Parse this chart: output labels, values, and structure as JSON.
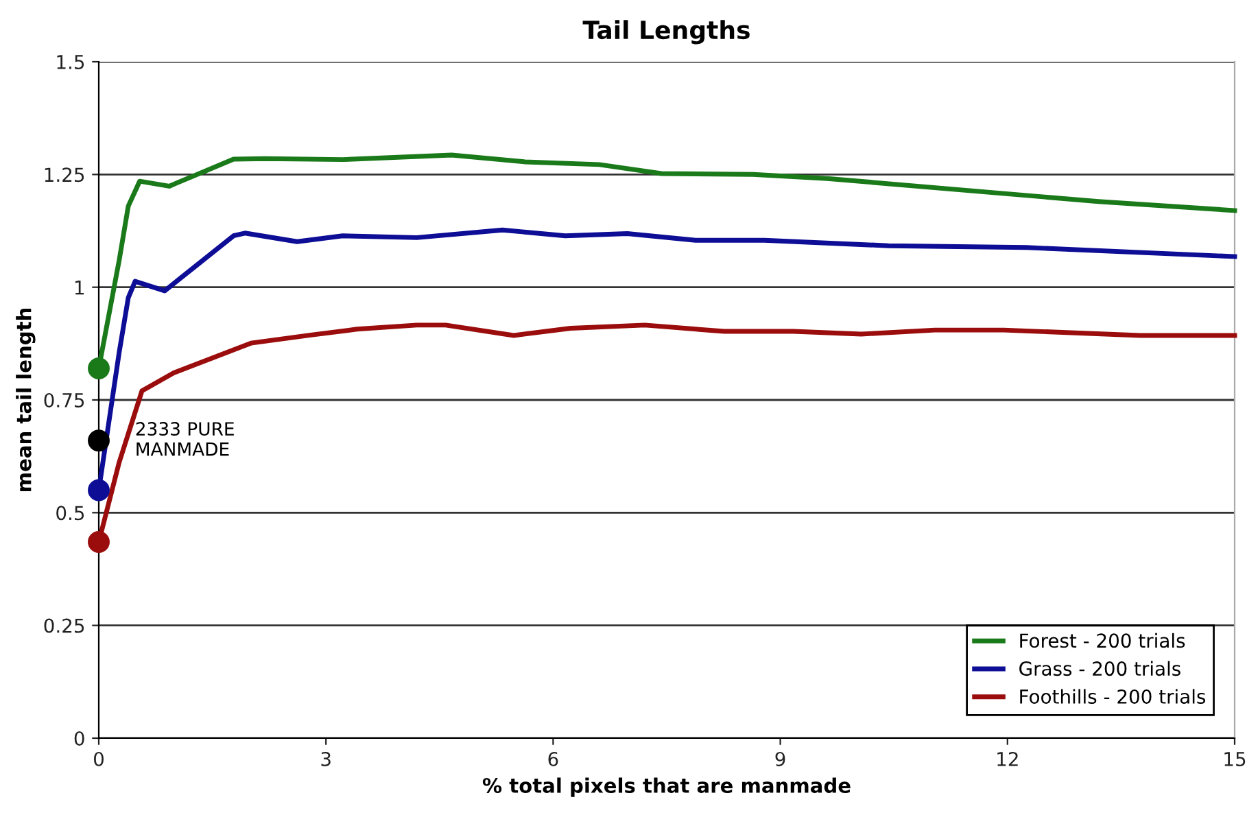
{
  "chart_data": {
    "type": "line",
    "title": "Tail Lengths",
    "xlabel": "% total pixels that are manmade",
    "ylabel": "mean tail length",
    "xlim": [
      0,
      15
    ],
    "xticks": [
      0,
      3,
      6,
      9,
      12,
      15
    ],
    "ylim": [
      0,
      1.5
    ],
    "yticks": [
      0,
      0.25,
      0.5,
      0.75,
      1,
      1.25,
      1.5
    ],
    "grid": "y",
    "legend": "bottom right",
    "marker": "none",
    "line_style": "solid",
    "annotations": [
      {
        "text": "2333 PURE\nMANMADE",
        "x": 0,
        "y": 0.66
      }
    ],
    "series": [
      {
        "name": "Forest - 200 trials",
        "color": "#1a7a1a",
        "x": [
          0,
          0.27,
          0.39,
          0.54,
          0.93,
          1.78,
          2.2,
          3.22,
          4.66,
          5.63,
          6.61,
          7.43,
          8.64,
          9.62,
          13.2,
          15
        ],
        "values": [
          0.82,
          1.06,
          1.18,
          1.235,
          1.224,
          1.284,
          1.285,
          1.283,
          1.293,
          1.278,
          1.272,
          1.252,
          1.25,
          1.241,
          1.19,
          1.17
        ]
      },
      {
        "name": "Grass - 200 trials",
        "color": "#0d0d96",
        "x": [
          0,
          0.27,
          0.39,
          0.48,
          0.87,
          1.78,
          1.93,
          2.62,
          3.22,
          4.2,
          5.33,
          6.16,
          6.98,
          7.88,
          8.79,
          10.43,
          12.25,
          15
        ],
        "values": [
          0.55,
          0.856,
          0.977,
          1.013,
          0.992,
          1.114,
          1.12,
          1.101,
          1.114,
          1.11,
          1.127,
          1.114,
          1.119,
          1.104,
          1.104,
          1.092,
          1.088,
          1.068
        ]
      },
      {
        "name": "Foothills - 200 trials",
        "color": "#9b0d0d",
        "x": [
          0,
          0.27,
          0.57,
          0.99,
          2.01,
          2.8,
          3.41,
          4.2,
          4.58,
          5.48,
          6.23,
          7.21,
          8.26,
          9.17,
          10.07,
          11.04,
          11.95,
          13.75,
          15
        ],
        "values": [
          0.435,
          0.612,
          0.77,
          0.81,
          0.876,
          0.894,
          0.907,
          0.916,
          0.916,
          0.893,
          0.909,
          0.916,
          0.902,
          0.902,
          0.896,
          0.905,
          0.905,
          0.893,
          0.893
        ]
      },
      {
        "type": "scatter",
        "marker": "circle",
        "color": "#1a7a1a",
        "x": [
          0
        ],
        "values": [
          0.82
        ]
      },
      {
        "type": "scatter",
        "marker": "circle",
        "color": "#0d0d96",
        "x": [
          0
        ],
        "values": [
          0.55
        ]
      },
      {
        "type": "scatter",
        "marker": "circle",
        "color": "#9b0d0d",
        "x": [
          0
        ],
        "values": [
          0.435
        ]
      },
      {
        "type": "scatter",
        "marker": "circle",
        "color": "#000000",
        "x": [
          0
        ],
        "values": [
          0.66
        ]
      }
    ]
  }
}
